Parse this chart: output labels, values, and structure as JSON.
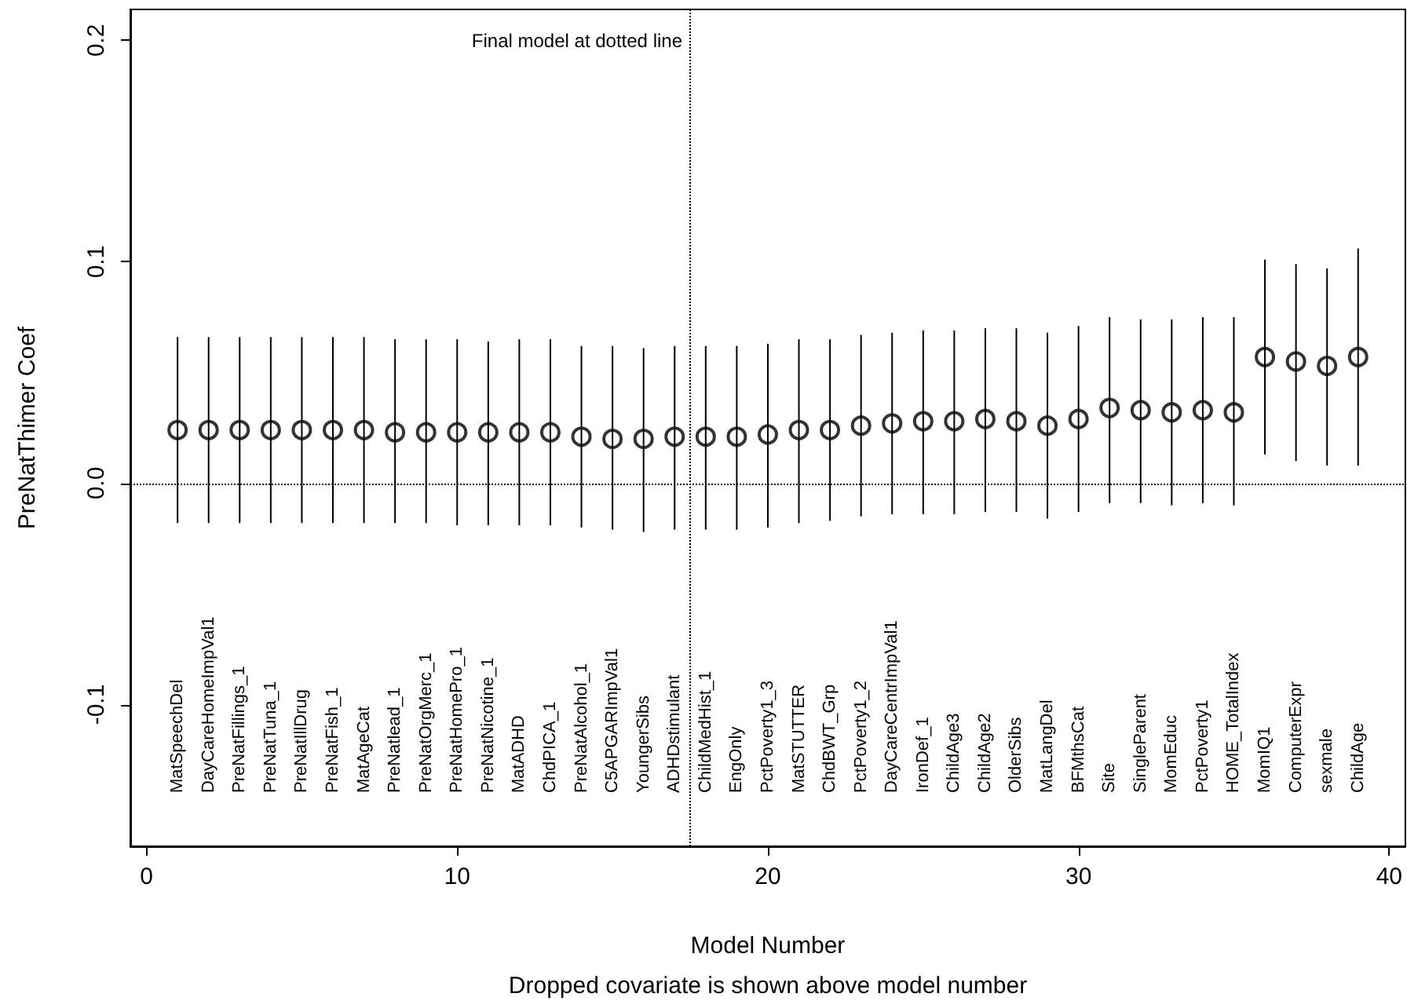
{
  "chart_data": {
    "type": "scatter",
    "xlabel": "Model Number",
    "ylabel": "PreNatThimer Coef",
    "annotations": [
      "Dropped covariate is shown above model number",
      "MatSpeechDel",
      "DayCareHomeImpVal1",
      "PreNatFillings_1",
      "PreNatTuna_1",
      "PreNatIllDrug",
      "PreNatFish_1",
      "MatAgeCat",
      "PreNatlead_1",
      "PreNatOrgMerc_1",
      "PreNatHomePro_1",
      "PreNatNicotine_1",
      "MatADHD",
      "ChdPICA_1",
      "PreNatAlcohol_1",
      "C5APGARImpVal1",
      "YoungerSibs",
      "ADHDstimulant",
      "ChildMedHist_1",
      "EngOnly",
      "PctPoverty1_3",
      "MatSTUTTER",
      "ChdBWT_Grp",
      "PctPoverty1_2",
      "DayCareCentrImpVal1",
      "IronDef_1",
      "ChildAge3",
      "ChildAge2",
      "OlderSibs",
      "MatLangDel",
      "BFMthsCat",
      "Site",
      "SingleParent",
      "MomEduc",
      "PctPoverty1",
      "HOME_TotalIndex",
      "MomIQ1",
      "ComputerExpr",
      "sexmale",
      "ChildAge"
    ],
    "x": [
      1,
      2,
      3,
      4,
      5,
      6,
      7,
      8,
      9,
      10,
      11,
      12,
      13,
      14,
      15,
      16,
      17,
      18,
      19,
      20,
      21,
      22,
      23,
      24,
      25,
      26,
      27,
      28,
      29,
      30,
      31,
      32,
      33,
      34,
      35,
      36,
      37,
      38,
      39
    ],
    "values": [
      0.024,
      0.024,
      0.024,
      0.024,
      0.024,
      0.024,
      0.024,
      0.023,
      0.023,
      0.023,
      0.023,
      0.023,
      0.023,
      0.021,
      0.02,
      0.02,
      0.021,
      0.021,
      0.021,
      0.022,
      0.024,
      0.024,
      0.026,
      0.027,
      0.028,
      0.028,
      0.029,
      0.028,
      0.026,
      0.029,
      0.034,
      0.033,
      0.032,
      0.033,
      0.032,
      0.057,
      0.055,
      0.053,
      0.057
    ],
    "errors": [
      [
        -0.018,
        0.066
      ],
      [
        -0.018,
        0.066
      ],
      [
        -0.018,
        0.066
      ],
      [
        -0.018,
        0.066
      ],
      [
        -0.018,
        0.066
      ],
      [
        -0.018,
        0.066
      ],
      [
        -0.018,
        0.066
      ],
      [
        -0.018,
        0.065
      ],
      [
        -0.018,
        0.065
      ],
      [
        -0.019,
        0.065
      ],
      [
        -0.019,
        0.064
      ],
      [
        -0.019,
        0.065
      ],
      [
        -0.019,
        0.065
      ],
      [
        -0.02,
        0.062
      ],
      [
        -0.021,
        0.062
      ],
      [
        -0.022,
        0.061
      ],
      [
        -0.021,
        0.062
      ],
      [
        -0.021,
        0.062
      ],
      [
        -0.021,
        0.062
      ],
      [
        -0.02,
        0.063
      ],
      [
        -0.018,
        0.065
      ],
      [
        -0.017,
        0.065
      ],
      [
        -0.015,
        0.067
      ],
      [
        -0.014,
        0.068
      ],
      [
        -0.014,
        0.069
      ],
      [
        -0.014,
        0.069
      ],
      [
        -0.013,
        0.07
      ],
      [
        -0.013,
        0.07
      ],
      [
        -0.016,
        0.068
      ],
      [
        -0.013,
        0.071
      ],
      [
        -0.009,
        0.075
      ],
      [
        -0.009,
        0.074
      ],
      [
        -0.01,
        0.074
      ],
      [
        -0.009,
        0.075
      ],
      [
        -0.01,
        0.075
      ],
      [
        0.013,
        0.101
      ],
      [
        0.01,
        0.099
      ],
      [
        0.008,
        0.097
      ],
      [
        0.008,
        0.106
      ]
    ],
    "color": "#000000",
    "marker": "circle",
    "xlim": [
      -0.52,
      40.52
    ],
    "ylim": [
      -0.164,
      0.214
    ],
    "xticks": [
      0,
      10,
      20,
      30,
      40
    ],
    "yticks": [
      {
        "value": -0.1,
        "label": "-0.1"
      },
      {
        "value": 0,
        "label": "0.0"
      },
      {
        "value": 0.1,
        "label": "0.1"
      },
      {
        "value": 0.2,
        "label": "0.2"
      }
    ],
    "ref_lines": [
      {
        "axis": "x",
        "value": 17.5,
        "label": "Final model at dotted line",
        "line_style": "dotted"
      },
      {
        "axis": "y",
        "value": 0,
        "label": null,
        "line_style": "dotted"
      }
    ]
  }
}
